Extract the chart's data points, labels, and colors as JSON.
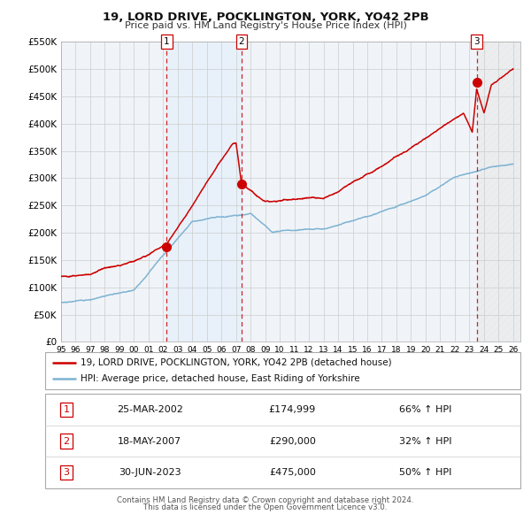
{
  "title": "19, LORD DRIVE, POCKLINGTON, YORK, YO42 2PB",
  "subtitle": "Price paid vs. HM Land Registry's House Price Index (HPI)",
  "ylim": [
    0,
    550000
  ],
  "yticks": [
    0,
    50000,
    100000,
    150000,
    200000,
    250000,
    300000,
    350000,
    400000,
    450000,
    500000,
    550000
  ],
  "ytick_labels": [
    "£0",
    "£50K",
    "£100K",
    "£150K",
    "£200K",
    "£250K",
    "£300K",
    "£350K",
    "£400K",
    "£450K",
    "£500K",
    "£550K"
  ],
  "xlim_start": 1995.0,
  "xlim_end": 2026.5,
  "xtick_years": [
    1995,
    1996,
    1997,
    1998,
    1999,
    2000,
    2001,
    2002,
    2003,
    2004,
    2005,
    2006,
    2007,
    2008,
    2009,
    2010,
    2011,
    2012,
    2013,
    2014,
    2015,
    2016,
    2017,
    2018,
    2019,
    2020,
    2021,
    2022,
    2023,
    2024,
    2025,
    2026
  ],
  "sale_line_color": "#cc0000",
  "hpi_line_color": "#7fb3d3",
  "vline_color": "#cc0000",
  "highlight_color_12": "#ddeeff",
  "highlight_alpha_12": 0.4,
  "hatch_region_color": "#e0e0e0",
  "legend_line1": "19, LORD DRIVE, POCKLINGTON, YORK, YO42 2PB (detached house)",
  "legend_line2": "HPI: Average price, detached house, East Riding of Yorkshire",
  "transactions": [
    {
      "num": 1,
      "date": "25-MAR-2002",
      "price": 174999,
      "pct": "66%",
      "dir": "↑",
      "x": 2002.23
    },
    {
      "num": 2,
      "date": "18-MAY-2007",
      "price": 290000,
      "pct": "32%",
      "dir": "↑",
      "x": 2007.38
    },
    {
      "num": 3,
      "date": "30-JUN-2023",
      "price": 475000,
      "pct": "50%",
      "dir": "↑",
      "x": 2023.5
    }
  ],
  "table_rows": [
    {
      "num": 1,
      "date": "25-MAR-2002",
      "price": "£174,999",
      "pct": "66% ↑ HPI"
    },
    {
      "num": 2,
      "date": "18-MAY-2007",
      "price": "£290,000",
      "pct": "32% ↑ HPI"
    },
    {
      "num": 3,
      "date": "30-JUN-2023",
      "price": "£475,000",
      "pct": "50% ↑ HPI"
    }
  ],
  "footer_line1": "Contains HM Land Registry data © Crown copyright and database right 2024.",
  "footer_line2": "This data is licensed under the Open Government Licence v3.0.",
  "background_chart": "#f0f4f8",
  "background_fig": "#ffffff"
}
